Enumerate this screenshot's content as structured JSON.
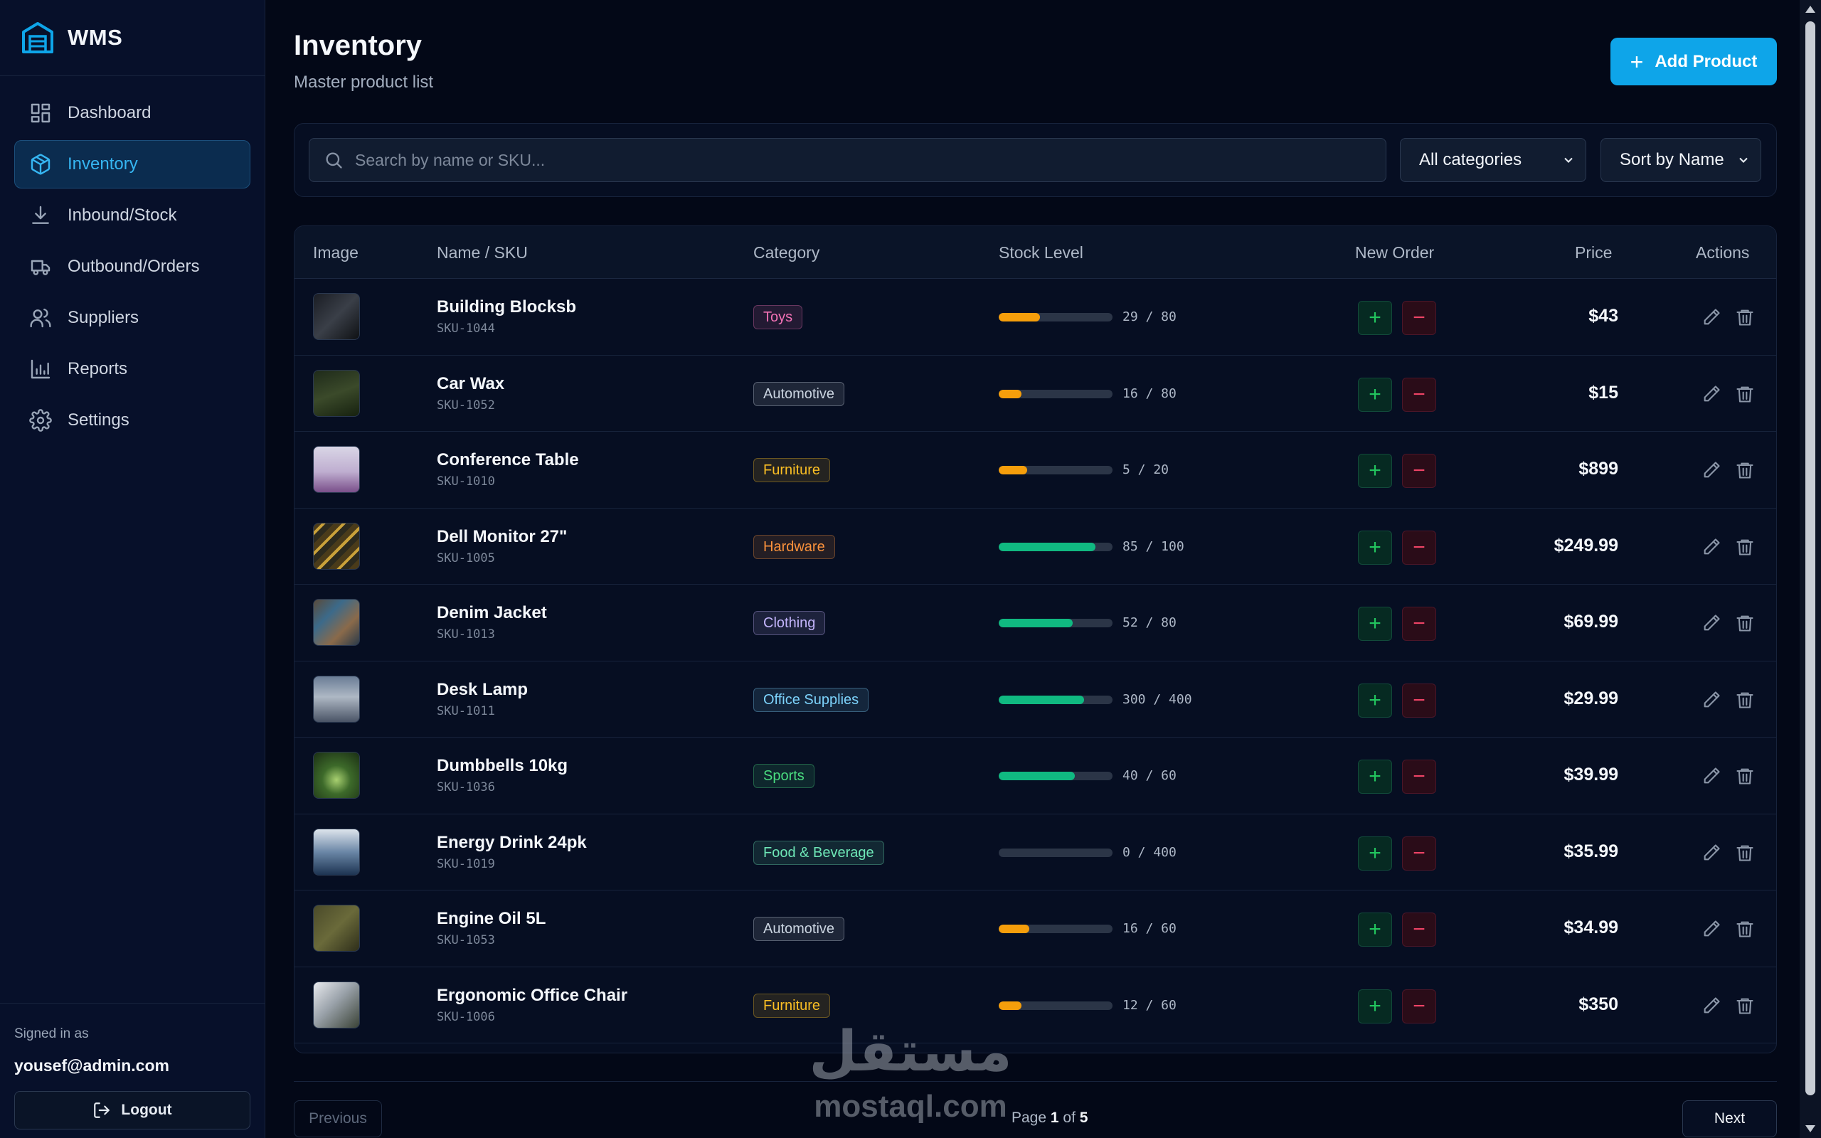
{
  "brand": {
    "name": "WMS"
  },
  "nav": [
    {
      "label": "Dashboard",
      "icon": "dashboard-icon",
      "active": false
    },
    {
      "label": "Inventory",
      "icon": "box-icon",
      "active": true
    },
    {
      "label": "Inbound/Stock",
      "icon": "download-icon",
      "active": false
    },
    {
      "label": "Outbound/Orders",
      "icon": "truck-icon",
      "active": false
    },
    {
      "label": "Suppliers",
      "icon": "users-icon",
      "active": false
    },
    {
      "label": "Reports",
      "icon": "bar-chart-icon",
      "active": false
    },
    {
      "label": "Settings",
      "icon": "gear-icon",
      "active": false
    }
  ],
  "user": {
    "signed_in_label": "Signed in as",
    "email": "yousef@admin.com",
    "logout_label": "Logout"
  },
  "header": {
    "title": "Inventory",
    "subtitle": "Master product list",
    "add_label": "Add Product"
  },
  "filters": {
    "search_placeholder": "Search by name or SKU...",
    "category_selected": "All categories",
    "sort_selected": "Sort by Name"
  },
  "table": {
    "columns": {
      "image": "Image",
      "name": "Name / SKU",
      "category": "Category",
      "stock": "Stock Level",
      "order": "New Order",
      "price": "Price",
      "actions": "Actions"
    },
    "rows": [
      {
        "name": "Building Blocksb",
        "sku": "SKU-1044",
        "category": "Toys",
        "stock": 29,
        "capacity": 80,
        "stock_text": "29 / 80",
        "price": "$43"
      },
      {
        "name": "Car Wax",
        "sku": "SKU-1052",
        "category": "Automotive",
        "stock": 16,
        "capacity": 80,
        "stock_text": "16 / 80",
        "price": "$15"
      },
      {
        "name": "Conference Table",
        "sku": "SKU-1010",
        "category": "Furniture",
        "stock": 5,
        "capacity": 20,
        "stock_text": "5 / 20",
        "price": "$899"
      },
      {
        "name": "Dell Monitor 27\"",
        "sku": "SKU-1005",
        "category": "Hardware",
        "stock": 85,
        "capacity": 100,
        "stock_text": "85 / 100",
        "price": "$249.99"
      },
      {
        "name": "Denim Jacket",
        "sku": "SKU-1013",
        "category": "Clothing",
        "stock": 52,
        "capacity": 80,
        "stock_text": "52 / 80",
        "price": "$69.99"
      },
      {
        "name": "Desk Lamp",
        "sku": "SKU-1011",
        "category": "Office Supplies",
        "stock": 300,
        "capacity": 400,
        "stock_text": "300 / 400",
        "price": "$29.99"
      },
      {
        "name": "Dumbbells 10kg",
        "sku": "SKU-1036",
        "category": "Sports",
        "stock": 40,
        "capacity": 60,
        "stock_text": "40 / 60",
        "price": "$39.99"
      },
      {
        "name": "Energy Drink 24pk",
        "sku": "SKU-1019",
        "category": "Food & Beverage",
        "stock": 0,
        "capacity": 400,
        "stock_text": "0 / 400",
        "price": "$35.99"
      },
      {
        "name": "Engine Oil 5L",
        "sku": "SKU-1053",
        "category": "Automotive",
        "stock": 16,
        "capacity": 60,
        "stock_text": "16 / 60",
        "price": "$34.99"
      },
      {
        "name": "Ergonomic Office Chair",
        "sku": "SKU-1006",
        "category": "Furniture",
        "stock": 12,
        "capacity": 60,
        "stock_text": "12 / 60",
        "price": "$350"
      }
    ]
  },
  "pagination": {
    "previous_label": "Previous",
    "next_label": "Next",
    "page_word": "Page",
    "current": "1",
    "of_word": "of",
    "total": "5"
  },
  "watermark": {
    "arabic": "مستقل",
    "latin": "mostaql.com"
  },
  "colors": {
    "accent": "#0ea5e9",
    "low_stock": "#f59e0b",
    "good_stock": "#10b981",
    "categories": {
      "Toys": "#f472b6",
      "Automotive": "#cbd5e1",
      "Furniture": "#fbbf24",
      "Hardware": "#fb923c",
      "Clothing": "#c4b5fd",
      "Office Supplies": "#7dd3fc",
      "Sports": "#4ade80",
      "Food & Beverage": "#6ee7b7"
    }
  }
}
